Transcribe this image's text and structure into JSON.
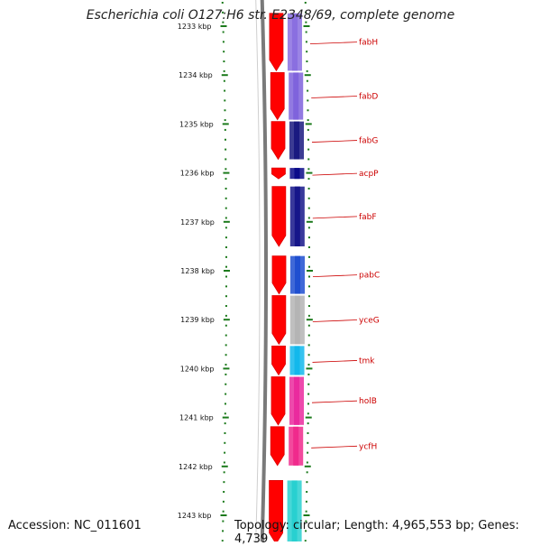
{
  "title": "Escherichia coli O127:H6 str. E2348/69, complete genome",
  "accession": "Accession: NC_011601",
  "topology": "Topology: circular; Length: 4,965,553 bp; Genes: 4,739",
  "scale": {
    "unit": "kbp",
    "ticks": [
      {
        "kbp": 1233,
        "label": "1233 kbp"
      },
      {
        "kbp": 1234,
        "label": "1234 kbp"
      },
      {
        "kbp": 1235,
        "label": "1235 kbp"
      },
      {
        "kbp": 1236,
        "label": "1236 kbp"
      },
      {
        "kbp": 1237,
        "label": "1237 kbp"
      },
      {
        "kbp": 1238,
        "label": "1238 kbp"
      },
      {
        "kbp": 1239,
        "label": "1239 kbp"
      },
      {
        "kbp": 1240,
        "label": "1240 kbp"
      },
      {
        "kbp": 1241,
        "label": "1241 kbp"
      },
      {
        "kbp": 1242,
        "label": "1242 kbp"
      },
      {
        "kbp": 1243,
        "label": "1243 kbp"
      }
    ]
  },
  "genes": [
    {
      "name": "fabH",
      "start_kbp": 1232.72,
      "end_kbp": 1233.93,
      "cog_color": "#8a6fe0"
    },
    {
      "name": "fabD",
      "start_kbp": 1233.93,
      "end_kbp": 1234.93,
      "cog_color": "#7f63dc"
    },
    {
      "name": "fabG",
      "start_kbp": 1234.93,
      "end_kbp": 1235.74,
      "cog_color": "#1a1a80"
    },
    {
      "name": "acpP",
      "start_kbp": 1235.88,
      "end_kbp": 1236.14,
      "cog_color": "#0b0b8a"
    },
    {
      "name": "fabF",
      "start_kbp": 1236.26,
      "end_kbp": 1237.52,
      "cog_color": "#16168a"
    },
    {
      "name": "pabC",
      "start_kbp": 1237.68,
      "end_kbp": 1238.49,
      "cog_color": "#1f4fd0"
    },
    {
      "name": "yceG",
      "start_kbp": 1238.49,
      "end_kbp": 1239.52,
      "cog_color": "#b4b4b4"
    },
    {
      "name": "tmk",
      "start_kbp": 1239.52,
      "end_kbp": 1240.15,
      "cog_color": "#12b8ec"
    },
    {
      "name": "holB",
      "start_kbp": 1240.15,
      "end_kbp": 1241.17,
      "cog_color": "#ea2a9e"
    },
    {
      "name": "ycfH",
      "start_kbp": 1241.17,
      "end_kbp": 1242.0,
      "cog_color": "#f02a8c"
    },
    {
      "name": "",
      "start_kbp": 1242.27,
      "end_kbp": 1243.6,
      "cog_color": "#28d0d0"
    }
  ],
  "colors": {
    "forward_strand": "#ff0000",
    "backbone": "#808080",
    "tick": "#1c7a1c",
    "gene_label": "#cc0000"
  }
}
